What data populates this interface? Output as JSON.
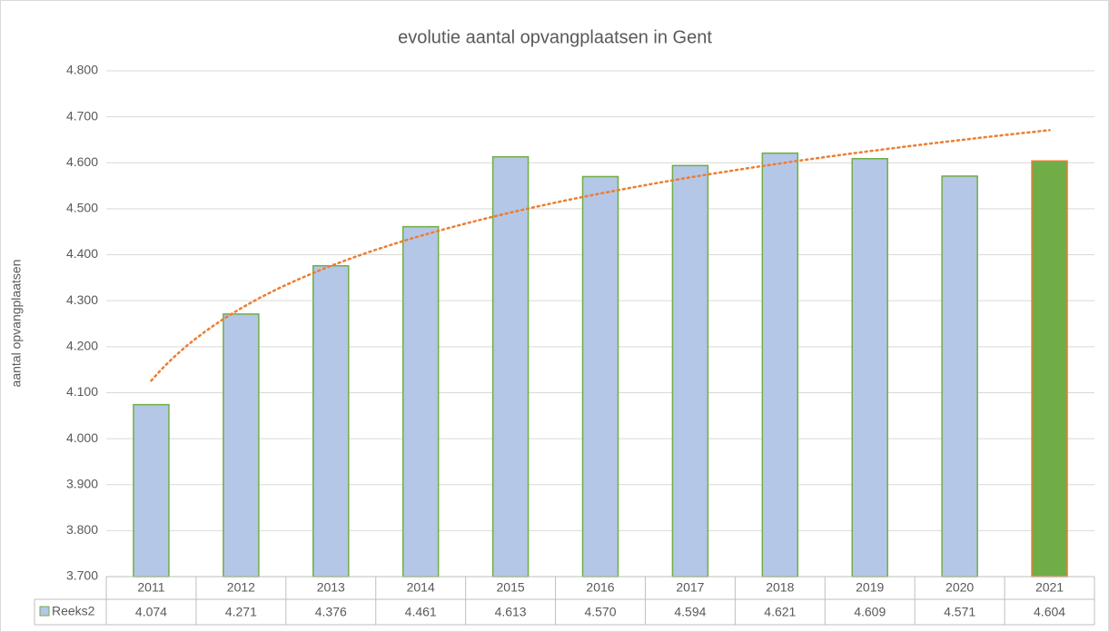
{
  "chart_data": {
    "type": "bar",
    "title": "evolutie aantal opvangplaatsen in Gent",
    "y_label": "aantal opvangplaatsen",
    "categories": [
      "2011",
      "2012",
      "2013",
      "2014",
      "2015",
      "2016",
      "2017",
      "2018",
      "2019",
      "2020",
      "2021"
    ],
    "series": [
      {
        "name": "Reeks2",
        "color": "#b4c7e7",
        "edgecolor": "#70ad47",
        "colors": [
          "#b4c7e7",
          "#b4c7e7",
          "#b4c7e7",
          "#b4c7e7",
          "#b4c7e7",
          "#b4c7e7",
          "#b4c7e7",
          "#b4c7e7",
          "#b4c7e7",
          "#b4c7e7",
          "#70ad47"
        ],
        "edgecolors": [
          "#70ad47",
          "#70ad47",
          "#70ad47",
          "#70ad47",
          "#70ad47",
          "#70ad47",
          "#70ad47",
          "#70ad47",
          "#70ad47",
          "#70ad47",
          "#ed7d31"
        ],
        "values": [
          4074,
          4271,
          4376,
          4461,
          4613,
          4570,
          4594,
          4621,
          4609,
          4571,
          4604
        ],
        "value_labels": [
          "4.074",
          "4.271",
          "4.376",
          "4.461",
          "4.613",
          "4.570",
          "4.594",
          "4.621",
          "4.609",
          "4.571",
          "4.604"
        ]
      }
    ],
    "trendline": {
      "type": "logarithmic",
      "color": "#ed7d31",
      "style": "dotted"
    },
    "ylim": [
      3700,
      4800
    ],
    "yticks": [
      {
        "value": 3700,
        "label": "3.700"
      },
      {
        "value": 3800,
        "label": "3.800"
      },
      {
        "value": 3900,
        "label": "3.900"
      },
      {
        "value": 4000,
        "label": "4.000"
      },
      {
        "value": 4100,
        "label": "4.100"
      },
      {
        "value": 4200,
        "label": "4.200"
      },
      {
        "value": 4300,
        "label": "4.300"
      },
      {
        "value": 4400,
        "label": "4.400"
      },
      {
        "value": 4500,
        "label": "4.500"
      },
      {
        "value": 4600,
        "label": "4.600"
      },
      {
        "value": 4700,
        "label": "4.700"
      },
      {
        "value": 4800,
        "label": "4.800"
      }
    ],
    "grid": true,
    "data_table": true
  }
}
